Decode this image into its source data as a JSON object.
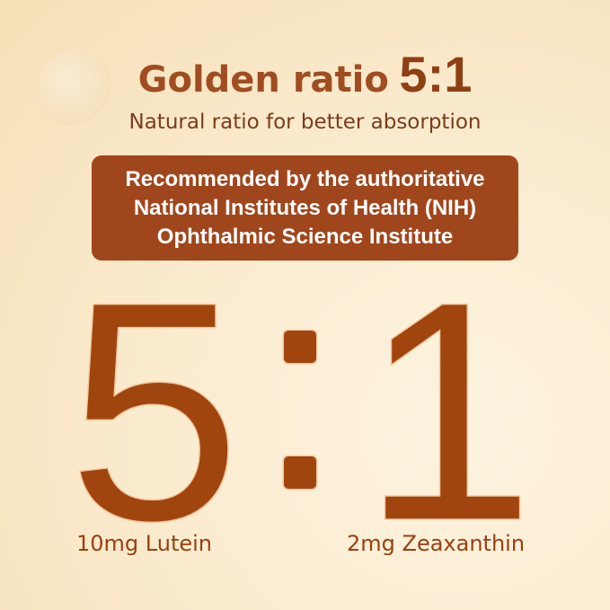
{
  "title": {
    "text": "Golden ratio",
    "ratio": "5:1"
  },
  "subtitle": "Natural ratio for better absorption",
  "banner": {
    "lines": [
      "Recommended by the authoritative",
      "National Institutes of Health (NIH)",
      "Ophthalmic Science Institute"
    ],
    "color": "#a0461c"
  },
  "ratio": {
    "left": "5",
    "separator": ":",
    "right": "1",
    "color": "#a1450f"
  },
  "labels": {
    "left": "10mg Lutein",
    "right": "2mg Zeaxanthin"
  }
}
